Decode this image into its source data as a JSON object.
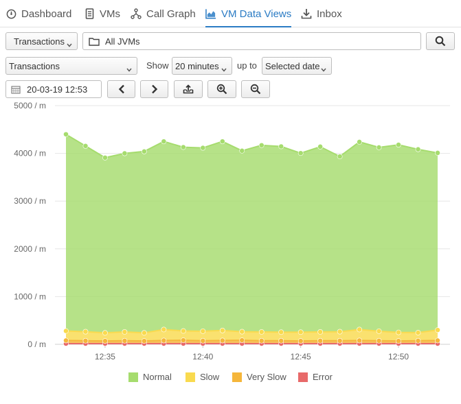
{
  "nav": {
    "tabs": [
      {
        "label": "Dashboard",
        "icon": "dashboard-gauge-icon"
      },
      {
        "label": "VMs",
        "icon": "server-icon"
      },
      {
        "label": "Call Graph",
        "icon": "call-graph-icon"
      },
      {
        "label": "VM Data Views",
        "icon": "area-chart-icon",
        "active": true
      },
      {
        "label": "Inbox",
        "icon": "download-icon"
      }
    ]
  },
  "toolbar": {
    "type_select": "Transactions",
    "jvm_filter": "All JVMs",
    "metric_select": "Transactions",
    "show_label": "Show",
    "range_select": "20 minutes",
    "upto_label": "up to",
    "upto_select": "Selected date",
    "date_value": "20-03-19 12:53"
  },
  "chart_data": {
    "type": "area",
    "stacked": true,
    "x": [
      "12:33",
      "12:34",
      "12:35",
      "12:36",
      "12:37",
      "12:38",
      "12:39",
      "12:40",
      "12:41",
      "12:42",
      "12:43",
      "12:44",
      "12:45",
      "12:46",
      "12:47",
      "12:48",
      "12:49",
      "12:50",
      "12:51",
      "12:52"
    ],
    "xticks": [
      "12:35",
      "12:40",
      "12:45",
      "12:50"
    ],
    "ylim": [
      0,
      5000
    ],
    "yticks": [
      0,
      1000,
      2000,
      3000,
      4000,
      5000
    ],
    "ytick_labels": [
      "0 / m",
      "1000 / m",
      "2000 / m",
      "3000 / m",
      "4000 / m",
      "5000 / m"
    ],
    "grid": true,
    "series": [
      {
        "name": "Error",
        "color": "#e86a6a",
        "values": [
          15,
          15,
          15,
          15,
          15,
          15,
          15,
          15,
          15,
          15,
          15,
          15,
          15,
          15,
          15,
          15,
          15,
          15,
          15,
          15
        ]
      },
      {
        "name": "Very Slow",
        "color": "#f5b63b",
        "values": [
          65,
          60,
          55,
          60,
          55,
          65,
          70,
          60,
          65,
          70,
          60,
          60,
          55,
          60,
          60,
          65,
          60,
          55,
          60,
          65
        ]
      },
      {
        "name": "Slow",
        "color": "#f9da4f",
        "values": [
          200,
          190,
          170,
          185,
          170,
          230,
          195,
          200,
          210,
          180,
          185,
          180,
          185,
          185,
          190,
          230,
          200,
          180,
          170,
          220
        ]
      },
      {
        "name": "Normal",
        "color": "#a6dc6e",
        "values": [
          4120,
          3890,
          3670,
          3740,
          3800,
          3940,
          3850,
          3840,
          3960,
          3790,
          3910,
          3890,
          3750,
          3880,
          3670,
          3930,
          3850,
          3930,
          3840,
          3710
        ]
      }
    ]
  },
  "legend": [
    {
      "label": "Normal",
      "color": "#a6dc6e"
    },
    {
      "label": "Slow",
      "color": "#f9da4f"
    },
    {
      "label": "Very Slow",
      "color": "#f5b63b"
    },
    {
      "label": "Error",
      "color": "#e86a6a"
    }
  ]
}
